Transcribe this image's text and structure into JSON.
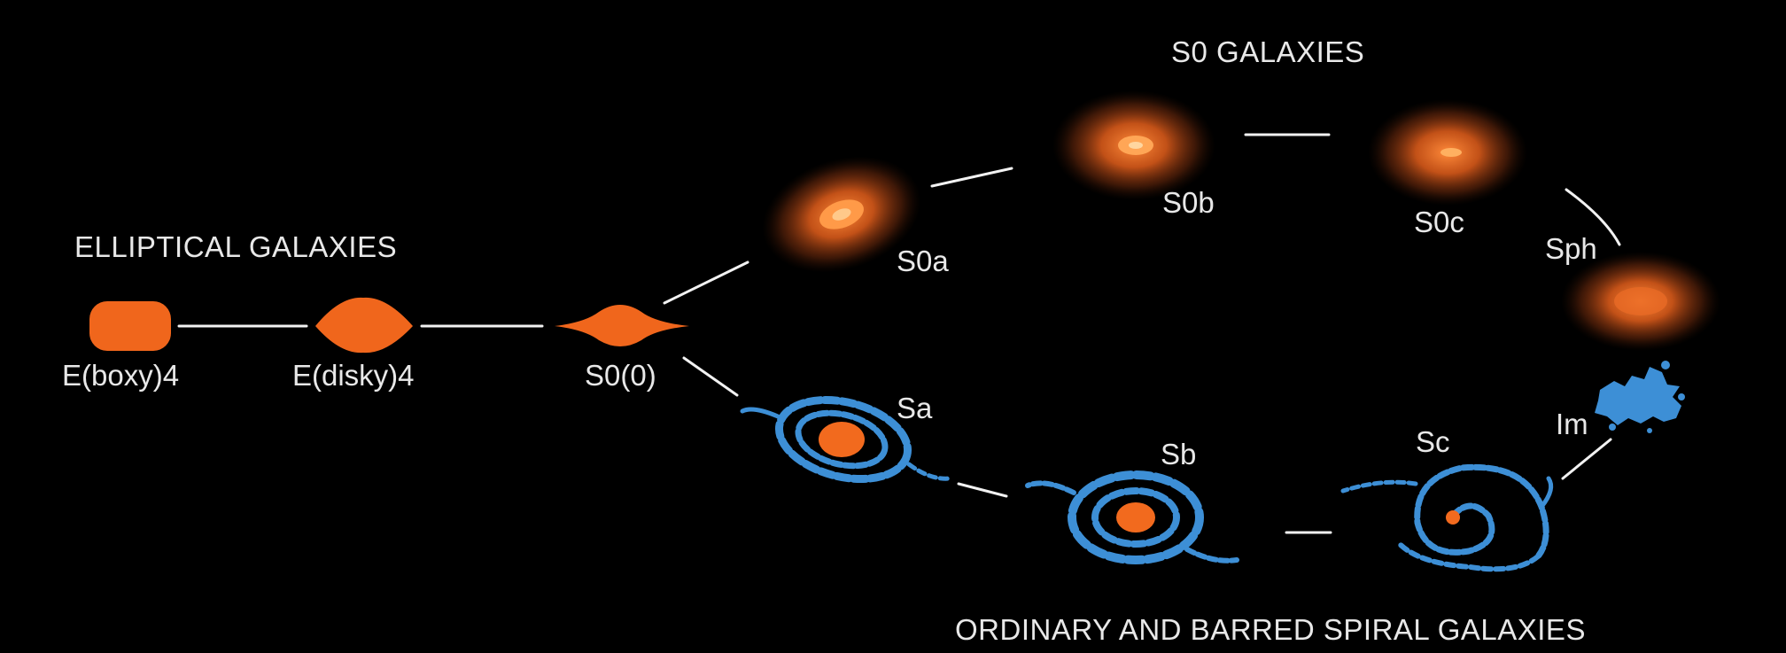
{
  "groups": {
    "elliptical": "ELLIPTICAL GALAXIES",
    "s0": "S0 GALAXIES",
    "spiral": "ORDINARY AND BARRED SPIRAL GALAXIES"
  },
  "galaxies": {
    "e_boxy": "E(boxy)4",
    "e_disky": "E(disky)4",
    "s0_0": "S0(0)",
    "s0a": "S0a",
    "s0b": "S0b",
    "s0c": "S0c",
    "sph": "Sph",
    "sa": "Sa",
    "sb": "Sb",
    "sc": "Sc",
    "im": "Im"
  },
  "colors": {
    "background": "#000000",
    "elliptical": "#f0661c",
    "s0_glow": "#e8641e",
    "spiral_arm": "#3d8fd6",
    "core": "#f26a1e",
    "line": "#f2f2f2",
    "text": "#e8e8e8"
  }
}
